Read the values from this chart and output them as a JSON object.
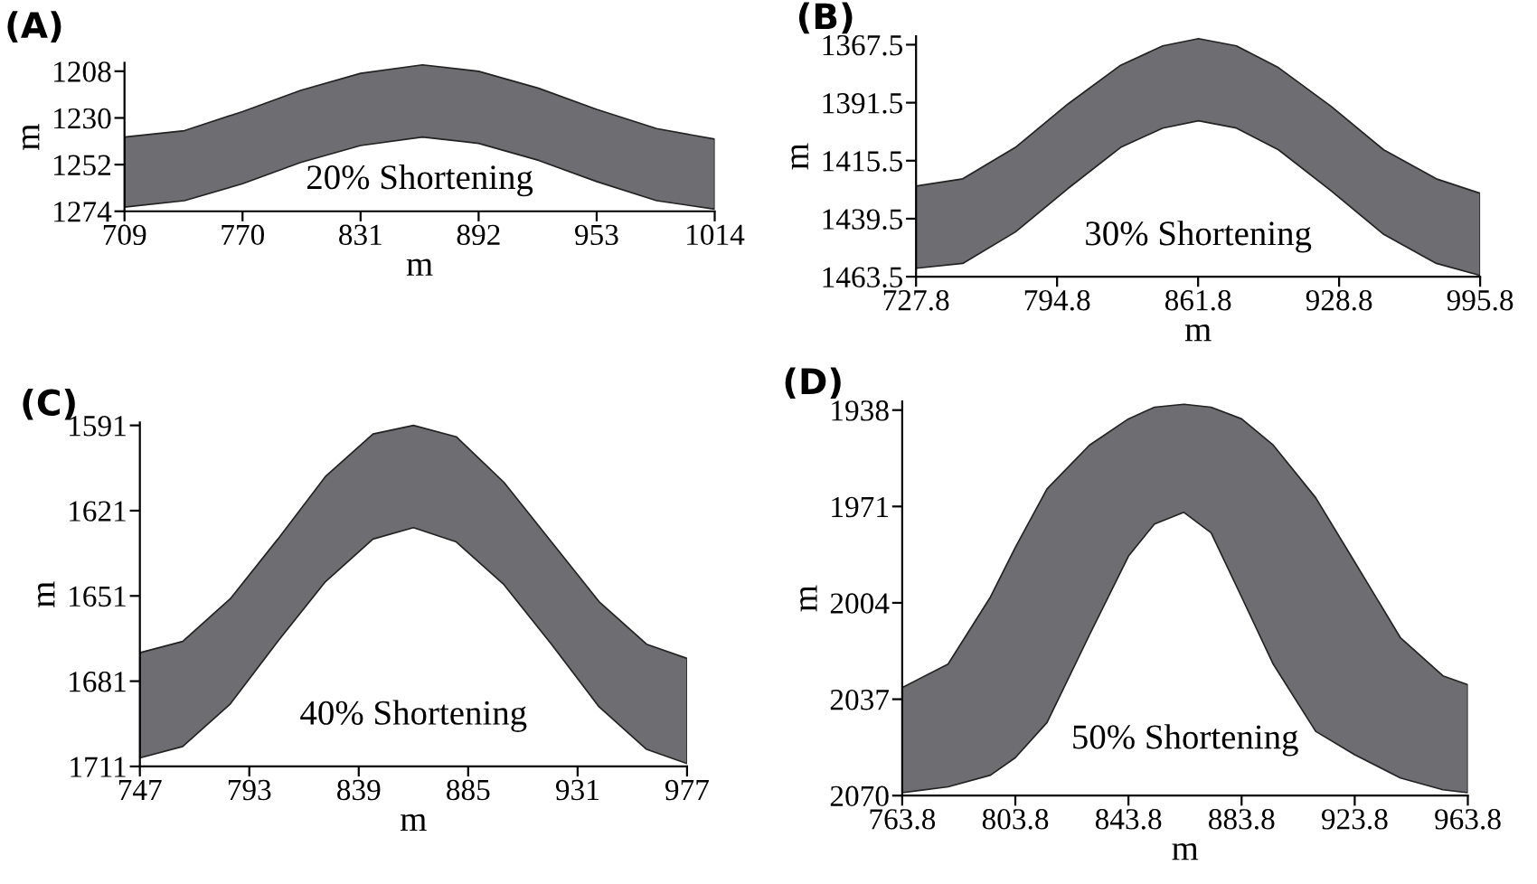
{
  "chart_data": [
    {
      "type": "line",
      "title": "(A)",
      "xlabel": "m",
      "ylabel": "m",
      "xlim": [
        709,
        1014
      ],
      "xticks": [
        709,
        770,
        831,
        892,
        953,
        1014
      ],
      "ylim": [
        1274,
        1204
      ],
      "yticks": [
        1208,
        1230,
        1252,
        1274
      ],
      "annotations": [
        "20% Shortening"
      ],
      "grid": false,
      "legend": false,
      "series": [
        {
          "color": "#6e6e72",
          "x": [
            709,
            740,
            770,
            800,
            831,
            863,
            892,
            923,
            953,
            984,
            1014
          ],
          "values": [
            null,
            null,
            null,
            null,
            null,
            null,
            null,
            null,
            null,
            null,
            null
          ],
          "upper": [
            1239,
            1236,
            1227,
            1217,
            1209,
            1205,
            1208,
            1216,
            1226,
            1235,
            1240
          ],
          "lower": [
            1272,
            1269,
            1261,
            1251,
            1243,
            1239,
            1242,
            1250,
            1260,
            1269,
            1273
          ]
        }
      ]
    },
    {
      "type": "line",
      "title": "(B)",
      "xlabel": "m",
      "ylabel": "m",
      "xlim": [
        727.8,
        995.8
      ],
      "xticks": [
        727.8,
        794.8,
        861.8,
        928.8,
        995.8
      ],
      "ylim": [
        1463.5,
        1364
      ],
      "yticks": [
        1367.5,
        1391.5,
        1415.5,
        1439.5,
        1463.5
      ],
      "annotations": [
        "30% Shortening"
      ],
      "grid": false,
      "legend": false,
      "series": [
        {
          "color": "#6e6e72",
          "x": [
            727.8,
            750,
            775,
            800,
            825,
            845,
            862,
            880,
            900,
            925,
            950,
            975,
            995.8
          ],
          "values": [
            null,
            null,
            null,
            null,
            null,
            null,
            null,
            null,
            null,
            null,
            null,
            null,
            null
          ],
          "upper": [
            1426,
            1423,
            1410,
            1392,
            1376,
            1368,
            1365,
            1368,
            1377,
            1393,
            1411,
            1423,
            1429
          ],
          "lower": [
            1460,
            1458,
            1445,
            1427,
            1410,
            1402,
            1399,
            1402,
            1411,
            1428,
            1446,
            1458,
            1463
          ]
        }
      ]
    },
    {
      "type": "line",
      "title": "(C)",
      "xlabel": "m",
      "ylabel": "m",
      "xlim": [
        747,
        977
      ],
      "xticks": [
        747,
        793,
        839,
        885,
        931,
        977
      ],
      "ylim": [
        1711,
        1590
      ],
      "yticks": [
        1591,
        1621,
        1651,
        1681,
        1711
      ],
      "annotations": [
        "40% Shortening"
      ],
      "grid": false,
      "legend": false,
      "series": [
        {
          "color": "#6e6e72",
          "x": [
            747,
            765,
            785,
            805,
            825,
            845,
            862,
            880,
            900,
            920,
            940,
            960,
            977
          ],
          "values": [
            null,
            null,
            null,
            null,
            null,
            null,
            null,
            null,
            null,
            null,
            null,
            null,
            null
          ],
          "upper": [
            1671,
            1667,
            1652,
            1631,
            1609,
            1594,
            1591,
            1595,
            1611,
            1632,
            1653,
            1668,
            1673
          ],
          "lower": [
            1708,
            1704,
            1689,
            1667,
            1646,
            1631,
            1627,
            1632,
            1647,
            1668,
            1690,
            1705,
            1710
          ]
        }
      ]
    },
    {
      "type": "line",
      "title": "(D)",
      "xlabel": "m",
      "ylabel": "m",
      "xlim": [
        763.8,
        963.8
      ],
      "xticks": [
        763.8,
        803.8,
        843.8,
        883.8,
        923.8,
        963.8
      ],
      "ylim": [
        2070,
        1935
      ],
      "yticks": [
        1938,
        1971,
        2004,
        2037,
        2070
      ],
      "annotations": [
        "50% Shortening"
      ],
      "grid": false,
      "legend": false,
      "series": [
        {
          "color": "#6e6e72",
          "x": [
            763.8,
            780,
            795,
            803.8,
            815,
            830,
            843.8,
            853,
            863.4,
            873,
            883.8,
            895,
            910,
            923.8,
            940,
            955,
            963.8
          ],
          "values": [
            null,
            null,
            null,
            null,
            null,
            null,
            null,
            null,
            null,
            null,
            null,
            null,
            null,
            null,
            null,
            null,
            null
          ],
          "upper": [
            2033,
            2025,
            2002,
            1985,
            1965,
            1950,
            1941,
            1937,
            1936,
            1937,
            1941,
            1950,
            1968,
            1990,
            2016,
            2029,
            2032
          ],
          "lower": [
            2069,
            2067,
            2063,
            2057,
            2045,
            2015,
            1988,
            1977,
            1973,
            1980,
            2002,
            2025,
            2048,
            2056,
            2064,
            2068,
            2069
          ]
        }
      ]
    }
  ]
}
